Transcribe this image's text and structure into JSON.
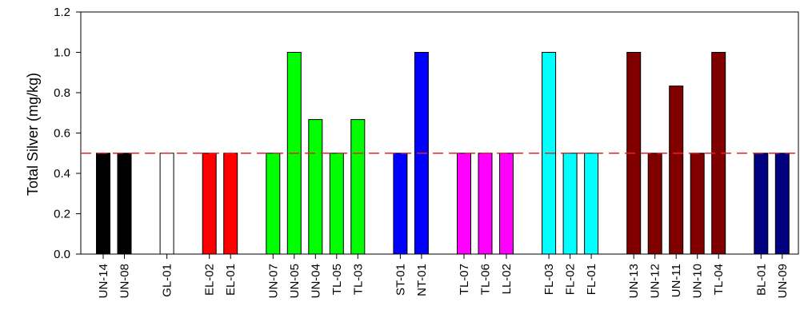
{
  "chart_data": {
    "type": "bar",
    "title": "",
    "xlabel": "",
    "ylabel": "Total Silver (mg/kg)",
    "ylim": [
      0,
      1.2
    ],
    "yticks": [
      "0.0",
      "0.2",
      "0.4",
      "0.6",
      "0.8",
      "1.0",
      "1.2"
    ],
    "grid": false,
    "reference_line": {
      "value": 0.5,
      "style": "dashed",
      "color": "#e8231f"
    },
    "groups": [
      {
        "color": "#000000",
        "bars": [
          {
            "label": "UN-14",
            "value": 0.5
          },
          {
            "label": "UN-08",
            "value": 0.5
          }
        ]
      },
      {
        "color": "#ffffff",
        "bars": [
          {
            "label": "GL-01",
            "value": 0.5
          }
        ]
      },
      {
        "color": "#ff0000",
        "bars": [
          {
            "label": "EL-02",
            "value": 0.5
          },
          {
            "label": "EL-01",
            "value": 0.5
          }
        ]
      },
      {
        "color": "#00ff00",
        "bars": [
          {
            "label": "UN-07",
            "value": 0.5
          },
          {
            "label": "UN-05",
            "value": 1.0
          },
          {
            "label": "UN-04",
            "value": 0.667
          },
          {
            "label": "TL-05",
            "value": 0.5
          },
          {
            "label": "TL-03",
            "value": 0.667
          }
        ]
      },
      {
        "color": "#0000ff",
        "bars": [
          {
            "label": "ST-01",
            "value": 0.5
          },
          {
            "label": "NT-01",
            "value": 1.0
          }
        ]
      },
      {
        "color": "#ff00ff",
        "bars": [
          {
            "label": "TL-07",
            "value": 0.5
          },
          {
            "label": "TL-06",
            "value": 0.5
          },
          {
            "label": "LL-02",
            "value": 0.5
          }
        ]
      },
      {
        "color": "#00ffff",
        "bars": [
          {
            "label": "FL-03",
            "value": 1.0
          },
          {
            "label": "FL-02",
            "value": 0.5
          },
          {
            "label": "FL-01",
            "value": 0.5
          }
        ]
      },
      {
        "color": "#800000",
        "bars": [
          {
            "label": "UN-13",
            "value": 1.0
          },
          {
            "label": "UN-12",
            "value": 0.5
          },
          {
            "label": "UN-11",
            "value": 0.833
          },
          {
            "label": "UN-10",
            "value": 0.5
          },
          {
            "label": "TL-04",
            "value": 1.0
          }
        ]
      },
      {
        "color": "#000080",
        "bars": [
          {
            "label": "BL-01",
            "value": 0.5
          },
          {
            "label": "UN-09",
            "value": 0.5
          }
        ]
      }
    ]
  }
}
